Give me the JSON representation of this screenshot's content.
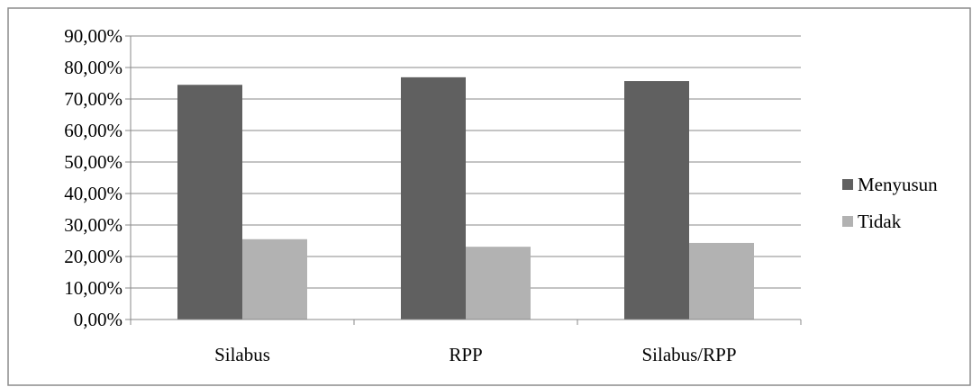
{
  "chart_data": {
    "type": "bar",
    "title": "",
    "xlabel": "",
    "ylabel": "",
    "categories": [
      "Silabus",
      "RPP",
      "Silabus/RPP"
    ],
    "series": [
      {
        "name": "Menyusun",
        "values": [
          74.5,
          76.9,
          75.7
        ],
        "color": "#606060"
      },
      {
        "name": "Tidak",
        "values": [
          25.5,
          23.1,
          24.3
        ],
        "color": "#b2b2b2"
      }
    ],
    "ylim": [
      0,
      90
    ],
    "yticks": [
      0,
      10,
      20,
      30,
      40,
      50,
      60,
      70,
      80,
      90
    ],
    "ytick_labels": [
      "0,00%",
      "10,00%",
      "20,00%",
      "30,00%",
      "40,00%",
      "50,00%",
      "60,00%",
      "70,00%",
      "80,00%",
      "90,00%"
    ],
    "grid": true,
    "legend_position": "right"
  }
}
